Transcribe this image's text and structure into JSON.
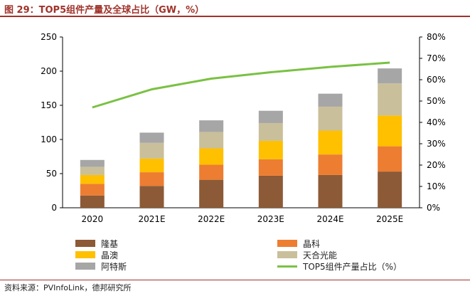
{
  "header": {
    "title": "图 29：TOP5组件产量及全球占比（GW，%）"
  },
  "footer": {
    "source": "资料来源：PVInfoLink，德邦研究所"
  },
  "chart_data": {
    "type": "bar",
    "stacked": true,
    "categories": [
      "2020",
      "2021E",
      "2022E",
      "2023E",
      "2024E",
      "2025E"
    ],
    "series": [
      {
        "name": "隆基",
        "color": "#8c5a36",
        "values": [
          18,
          32,
          41,
          47,
          48,
          53
        ]
      },
      {
        "name": "晶科",
        "color": "#ed7d31",
        "values": [
          17,
          20,
          22,
          24,
          30,
          37
        ]
      },
      {
        "name": "晶澳",
        "color": "#ffc000",
        "values": [
          13,
          20,
          24,
          27,
          35,
          45
        ]
      },
      {
        "name": "天合光能",
        "color": "#c9bf9a",
        "values": [
          12,
          23,
          24,
          26,
          35,
          47
        ]
      },
      {
        "name": "阿特斯",
        "color": "#a6a6a6",
        "values": [
          10,
          15,
          17,
          18,
          19,
          22
        ]
      }
    ],
    "line": {
      "name": "TOP5组件产量占比（%）",
      "color": "#7ac143",
      "axis": "right",
      "values": [
        47,
        55.5,
        60.5,
        63.5,
        66,
        68
      ]
    },
    "y_left": {
      "min": 0,
      "max": 250,
      "ticks": [
        0,
        50,
        100,
        150,
        200,
        250
      ]
    },
    "y_right": {
      "min": 0,
      "max": 80,
      "ticks": [
        "0%",
        "10%",
        "20%",
        "30%",
        "40%",
        "50%",
        "60%",
        "70%",
        "80%"
      ]
    },
    "grid": false,
    "legend_position": "bottom"
  },
  "legend": {
    "longi": "隆基",
    "jinko": "晶科",
    "ja": "晶澳",
    "trina": "天合光能",
    "csi": "阿特斯",
    "line": "TOP5组件产量占比（%）"
  },
  "colors": {
    "title": "#a0322a"
  }
}
